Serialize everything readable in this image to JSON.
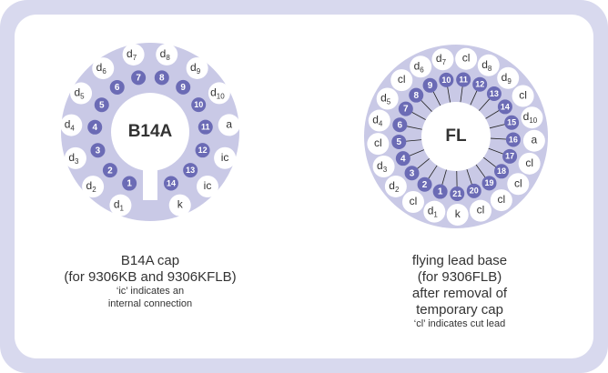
{
  "diagrams": [
    {
      "center_label": "B14A",
      "pins": [
        {
          "number": 1,
          "label": {
            "text": "d",
            "sub": "1"
          }
        },
        {
          "number": 2,
          "label": {
            "text": "d",
            "sub": "2"
          }
        },
        {
          "number": 3,
          "label": {
            "text": "d",
            "sub": "3"
          }
        },
        {
          "number": 4,
          "label": {
            "text": "d",
            "sub": "4"
          }
        },
        {
          "number": 5,
          "label": {
            "text": "d",
            "sub": "5"
          }
        },
        {
          "number": 6,
          "label": {
            "text": "d",
            "sub": "6"
          }
        },
        {
          "number": 7,
          "label": {
            "text": "d",
            "sub": "7"
          }
        },
        {
          "number": 8,
          "label": {
            "text": "d",
            "sub": "8"
          }
        },
        {
          "number": 9,
          "label": {
            "text": "d",
            "sub": "9"
          }
        },
        {
          "number": 10,
          "label": {
            "text": "d",
            "sub": "10"
          }
        },
        {
          "number": 11,
          "label": {
            "text": "a"
          }
        },
        {
          "number": 12,
          "label": {
            "text": "ic"
          }
        },
        {
          "number": 13,
          "label": {
            "text": "ic"
          }
        },
        {
          "number": 14,
          "label": {
            "text": "k"
          }
        }
      ],
      "caption": [
        "B14A cap",
        "(for 9306KB and 9306KFLB)"
      ],
      "note": [
        "‘ic’ indicates an",
        "internal connection"
      ]
    },
    {
      "center_label": "FL",
      "pins": [
        {
          "number": 1,
          "label": {
            "text": "d",
            "sub": "1"
          }
        },
        {
          "number": 2,
          "label": {
            "text": "cl"
          }
        },
        {
          "number": 3,
          "label": {
            "text": "d",
            "sub": "2"
          }
        },
        {
          "number": 4,
          "label": {
            "text": "d",
            "sub": "3"
          }
        },
        {
          "number": 5,
          "label": {
            "text": "cl"
          }
        },
        {
          "number": 6,
          "label": {
            "text": "d",
            "sub": "4"
          }
        },
        {
          "number": 7,
          "label": {
            "text": "d",
            "sub": "5"
          }
        },
        {
          "number": 8,
          "label": {
            "text": "cl"
          }
        },
        {
          "number": 9,
          "label": {
            "text": "d",
            "sub": "6"
          }
        },
        {
          "number": 10,
          "label": {
            "text": "d",
            "sub": "7"
          }
        },
        {
          "number": 11,
          "label": {
            "text": "cl"
          }
        },
        {
          "number": 12,
          "label": {
            "text": "d",
            "sub": "8"
          }
        },
        {
          "number": 13,
          "label": {
            "text": "d",
            "sub": "9"
          }
        },
        {
          "number": 14,
          "label": {
            "text": "cl"
          }
        },
        {
          "number": 15,
          "label": {
            "text": "d",
            "sub": "10"
          }
        },
        {
          "number": 16,
          "label": {
            "text": "a"
          }
        },
        {
          "number": 17,
          "label": {
            "text": "cl"
          }
        },
        {
          "number": 18,
          "label": {
            "text": "cl"
          }
        },
        {
          "number": 19,
          "label": {
            "text": "cl"
          }
        },
        {
          "number": 20,
          "label": {
            "text": "cl"
          }
        },
        {
          "number": 21,
          "label": {
            "text": "k"
          }
        }
      ],
      "caption": [
        "flying lead base",
        "(for 9306FLB)",
        "after removal of",
        "temporary cap"
      ],
      "note": [
        "‘cl’ indicates cut lead"
      ]
    }
  ]
}
